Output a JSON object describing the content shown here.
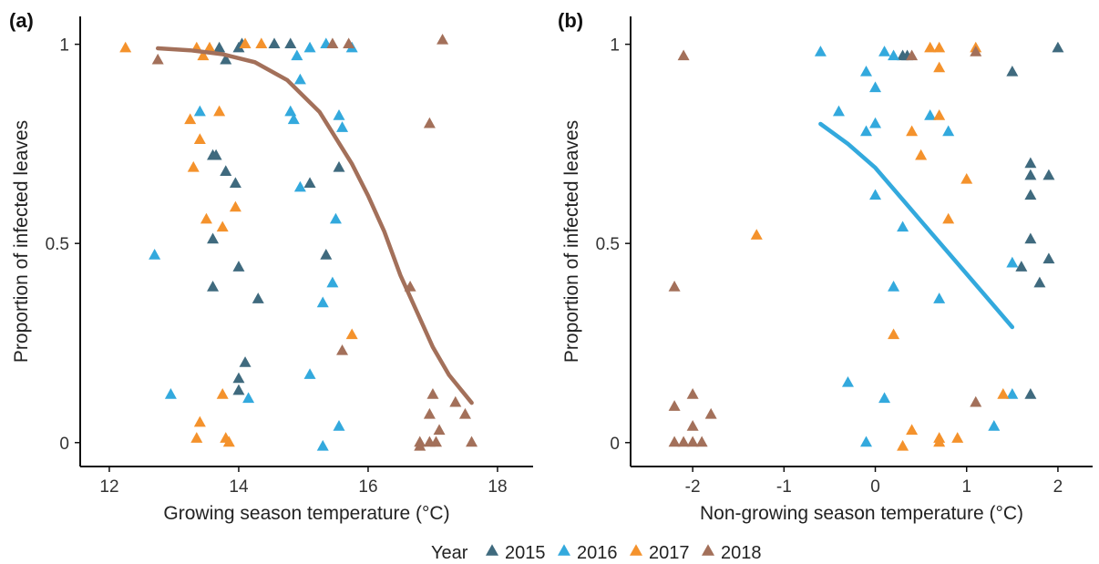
{
  "legend": {
    "title": "Year",
    "entries": [
      {
        "name": "2015",
        "color": "#3f6a7e"
      },
      {
        "name": "2016",
        "color": "#33a9dd"
      },
      {
        "name": "2017",
        "color": "#f4922c"
      },
      {
        "name": "2018",
        "color": "#a3705a"
      }
    ],
    "marker": "triangle",
    "placement": "bottom"
  },
  "chart_data": [
    {
      "type": "scatter",
      "panel_label": "(a)",
      "xlabel": "Growing season temperature (°C)",
      "ylabel": "Proportion of infected leaves",
      "xlim": [
        11.55,
        18.55
      ],
      "ylim": [
        -0.06,
        1.07
      ],
      "xticks": [
        12,
        14,
        16,
        18
      ],
      "xtick_labels": [
        "12",
        "14",
        "16",
        "18"
      ],
      "yticks": [
        0,
        0.5,
        1
      ],
      "ytick_labels": [
        "0",
        "0.5",
        "1"
      ],
      "grid": false,
      "series": [
        {
          "name": "2015",
          "color": "#3f6a7e",
          "points": [
            [
              13.6,
              0.72
            ],
            [
              13.65,
              0.72
            ],
            [
              13.8,
              0.68
            ],
            [
              13.95,
              0.65
            ],
            [
              13.6,
              0.51
            ],
            [
              14.0,
              0.44
            ],
            [
              13.6,
              0.39
            ],
            [
              14.3,
              0.36
            ],
            [
              14.1,
              0.2
            ],
            [
              14.0,
              0.16
            ],
            [
              14.0,
              0.13
            ],
            [
              13.7,
              0.99
            ],
            [
              13.8,
              0.96
            ],
            [
              14.0,
              0.99
            ],
            [
              14.05,
              1.0
            ],
            [
              14.55,
              1.0
            ],
            [
              14.8,
              1.0
            ],
            [
              15.1,
              0.65
            ],
            [
              15.55,
              0.69
            ],
            [
              15.35,
              0.47
            ]
          ]
        },
        {
          "name": "2016",
          "color": "#33a9dd",
          "points": [
            [
              12.7,
              0.47
            ],
            [
              12.95,
              0.12
            ],
            [
              13.4,
              0.83
            ],
            [
              14.15,
              0.11
            ],
            [
              14.8,
              0.83
            ],
            [
              14.85,
              0.81
            ],
            [
              14.9,
              0.97
            ],
            [
              14.95,
              0.91
            ],
            [
              14.95,
              0.64
            ],
            [
              15.1,
              0.99
            ],
            [
              15.3,
              0.35
            ],
            [
              15.45,
              0.4
            ],
            [
              15.5,
              0.56
            ],
            [
              15.55,
              0.82
            ],
            [
              15.6,
              0.79
            ],
            [
              15.1,
              0.17
            ],
            [
              15.55,
              0.04
            ],
            [
              15.3,
              -0.01
            ],
            [
              15.35,
              1.0
            ],
            [
              15.75,
              0.99
            ]
          ]
        },
        {
          "name": "2017",
          "color": "#f4922c",
          "points": [
            [
              12.25,
              0.99
            ],
            [
              13.25,
              0.81
            ],
            [
              13.35,
              0.99
            ],
            [
              13.45,
              0.97
            ],
            [
              13.55,
              0.99
            ],
            [
              13.3,
              0.69
            ],
            [
              13.4,
              0.76
            ],
            [
              13.5,
              0.56
            ],
            [
              13.7,
              0.83
            ],
            [
              13.75,
              0.54
            ],
            [
              13.95,
              0.59
            ],
            [
              14.1,
              1.0
            ],
            [
              14.35,
              1.0
            ],
            [
              13.75,
              0.12
            ],
            [
              13.35,
              0.01
            ],
            [
              13.4,
              0.05
            ],
            [
              13.8,
              0.01
            ],
            [
              13.85,
              0.0
            ],
            [
              15.75,
              0.27
            ]
          ]
        },
        {
          "name": "2018",
          "color": "#a3705a",
          "points": [
            [
              12.75,
              0.96
            ],
            [
              15.45,
              1.0
            ],
            [
              15.7,
              1.0
            ],
            [
              15.6,
              0.23
            ],
            [
              16.65,
              0.39
            ],
            [
              16.95,
              0.8
            ],
            [
              17.15,
              1.01
            ],
            [
              16.8,
              -0.01
            ],
            [
              16.8,
              0.0
            ],
            [
              16.95,
              0.07
            ],
            [
              17.0,
              0.12
            ],
            [
              17.05,
              0.0
            ],
            [
              17.1,
              0.03
            ],
            [
              16.95,
              0.0
            ],
            [
              17.35,
              0.1
            ],
            [
              17.5,
              0.07
            ],
            [
              17.6,
              0.0
            ]
          ]
        }
      ],
      "fit_line": {
        "series": "2018",
        "color": "#a3705a",
        "points": [
          [
            12.75,
            0.99
          ],
          [
            13.25,
            0.985
          ],
          [
            13.75,
            0.975
          ],
          [
            14.25,
            0.955
          ],
          [
            14.75,
            0.91
          ],
          [
            15.25,
            0.83
          ],
          [
            15.75,
            0.7
          ],
          [
            16.0,
            0.62
          ],
          [
            16.25,
            0.53
          ],
          [
            16.5,
            0.42
          ],
          [
            16.75,
            0.33
          ],
          [
            17.0,
            0.24
          ],
          [
            17.25,
            0.17
          ],
          [
            17.6,
            0.1
          ]
        ]
      }
    },
    {
      "type": "scatter",
      "panel_label": "(b)",
      "xlabel": "Non-growing season temperature (°C)",
      "ylabel": "Proportion of infected leaves",
      "xlim": [
        -2.68,
        2.38
      ],
      "ylim": [
        -0.06,
        1.07
      ],
      "xticks": [
        -2,
        -1,
        0,
        1,
        2
      ],
      "xtick_labels": [
        "-2",
        "-1",
        "0",
        "1",
        "2"
      ],
      "yticks": [
        0,
        0.5,
        1
      ],
      "ytick_labels": [
        "0",
        "0.5",
        "1"
      ],
      "grid": false,
      "series": [
        {
          "name": "2015",
          "color": "#3f6a7e",
          "points": [
            [
              0.3,
              0.97
            ],
            [
              0.35,
              0.97
            ],
            [
              1.5,
              0.93
            ],
            [
              2.0,
              0.99
            ],
            [
              1.7,
              0.7
            ],
            [
              1.7,
              0.67
            ],
            [
              1.9,
              0.67
            ],
            [
              1.7,
              0.62
            ],
            [
              1.7,
              0.51
            ],
            [
              1.6,
              0.44
            ],
            [
              1.9,
              0.46
            ],
            [
              1.8,
              0.4
            ],
            [
              1.7,
              0.12
            ]
          ]
        },
        {
          "name": "2016",
          "color": "#33a9dd",
          "points": [
            [
              -0.6,
              0.98
            ],
            [
              0.1,
              0.98
            ],
            [
              0.2,
              0.97
            ],
            [
              -0.1,
              0.93
            ],
            [
              0.0,
              0.89
            ],
            [
              -0.4,
              0.83
            ],
            [
              0.0,
              0.8
            ],
            [
              -0.1,
              0.78
            ],
            [
              0.6,
              0.82
            ],
            [
              0.8,
              0.78
            ],
            [
              0.0,
              0.62
            ],
            [
              0.3,
              0.54
            ],
            [
              0.2,
              0.39
            ],
            [
              0.7,
              0.36
            ],
            [
              1.5,
              0.45
            ],
            [
              -0.3,
              0.15
            ],
            [
              0.1,
              0.11
            ],
            [
              1.5,
              0.12
            ],
            [
              1.3,
              0.04
            ],
            [
              -0.1,
              0.0
            ]
          ]
        },
        {
          "name": "2017",
          "color": "#f4922c",
          "points": [
            [
              0.6,
              0.99
            ],
            [
              0.7,
              0.99
            ],
            [
              1.1,
              0.99
            ],
            [
              0.7,
              0.94
            ],
            [
              0.7,
              0.82
            ],
            [
              0.4,
              0.78
            ],
            [
              0.5,
              0.72
            ],
            [
              1.0,
              0.66
            ],
            [
              0.8,
              0.56
            ],
            [
              -1.3,
              0.52
            ],
            [
              0.2,
              0.27
            ],
            [
              1.4,
              0.12
            ],
            [
              0.4,
              0.03
            ],
            [
              0.7,
              0.0
            ],
            [
              0.9,
              0.01
            ],
            [
              0.7,
              0.01
            ],
            [
              0.3,
              -0.01
            ]
          ]
        },
        {
          "name": "2018",
          "color": "#a3705a",
          "points": [
            [
              -2.1,
              0.97
            ],
            [
              0.4,
              0.97
            ],
            [
              1.1,
              0.98
            ],
            [
              -2.2,
              0.39
            ],
            [
              -2.0,
              0.12
            ],
            [
              -2.2,
              0.09
            ],
            [
              -1.8,
              0.07
            ],
            [
              -2.0,
              0.04
            ],
            [
              -2.2,
              0.0
            ],
            [
              -2.1,
              0.0
            ],
            [
              -2.0,
              0.0
            ],
            [
              -1.9,
              0.0
            ],
            [
              1.1,
              0.1
            ]
          ]
        }
      ],
      "fit_line": {
        "series": "2016",
        "color": "#33a9dd",
        "points": [
          [
            -0.6,
            0.8
          ],
          [
            -0.3,
            0.75
          ],
          [
            0.0,
            0.69
          ],
          [
            0.3,
            0.61
          ],
          [
            0.6,
            0.53
          ],
          [
            0.9,
            0.45
          ],
          [
            1.2,
            0.37
          ],
          [
            1.5,
            0.29
          ]
        ]
      }
    }
  ]
}
